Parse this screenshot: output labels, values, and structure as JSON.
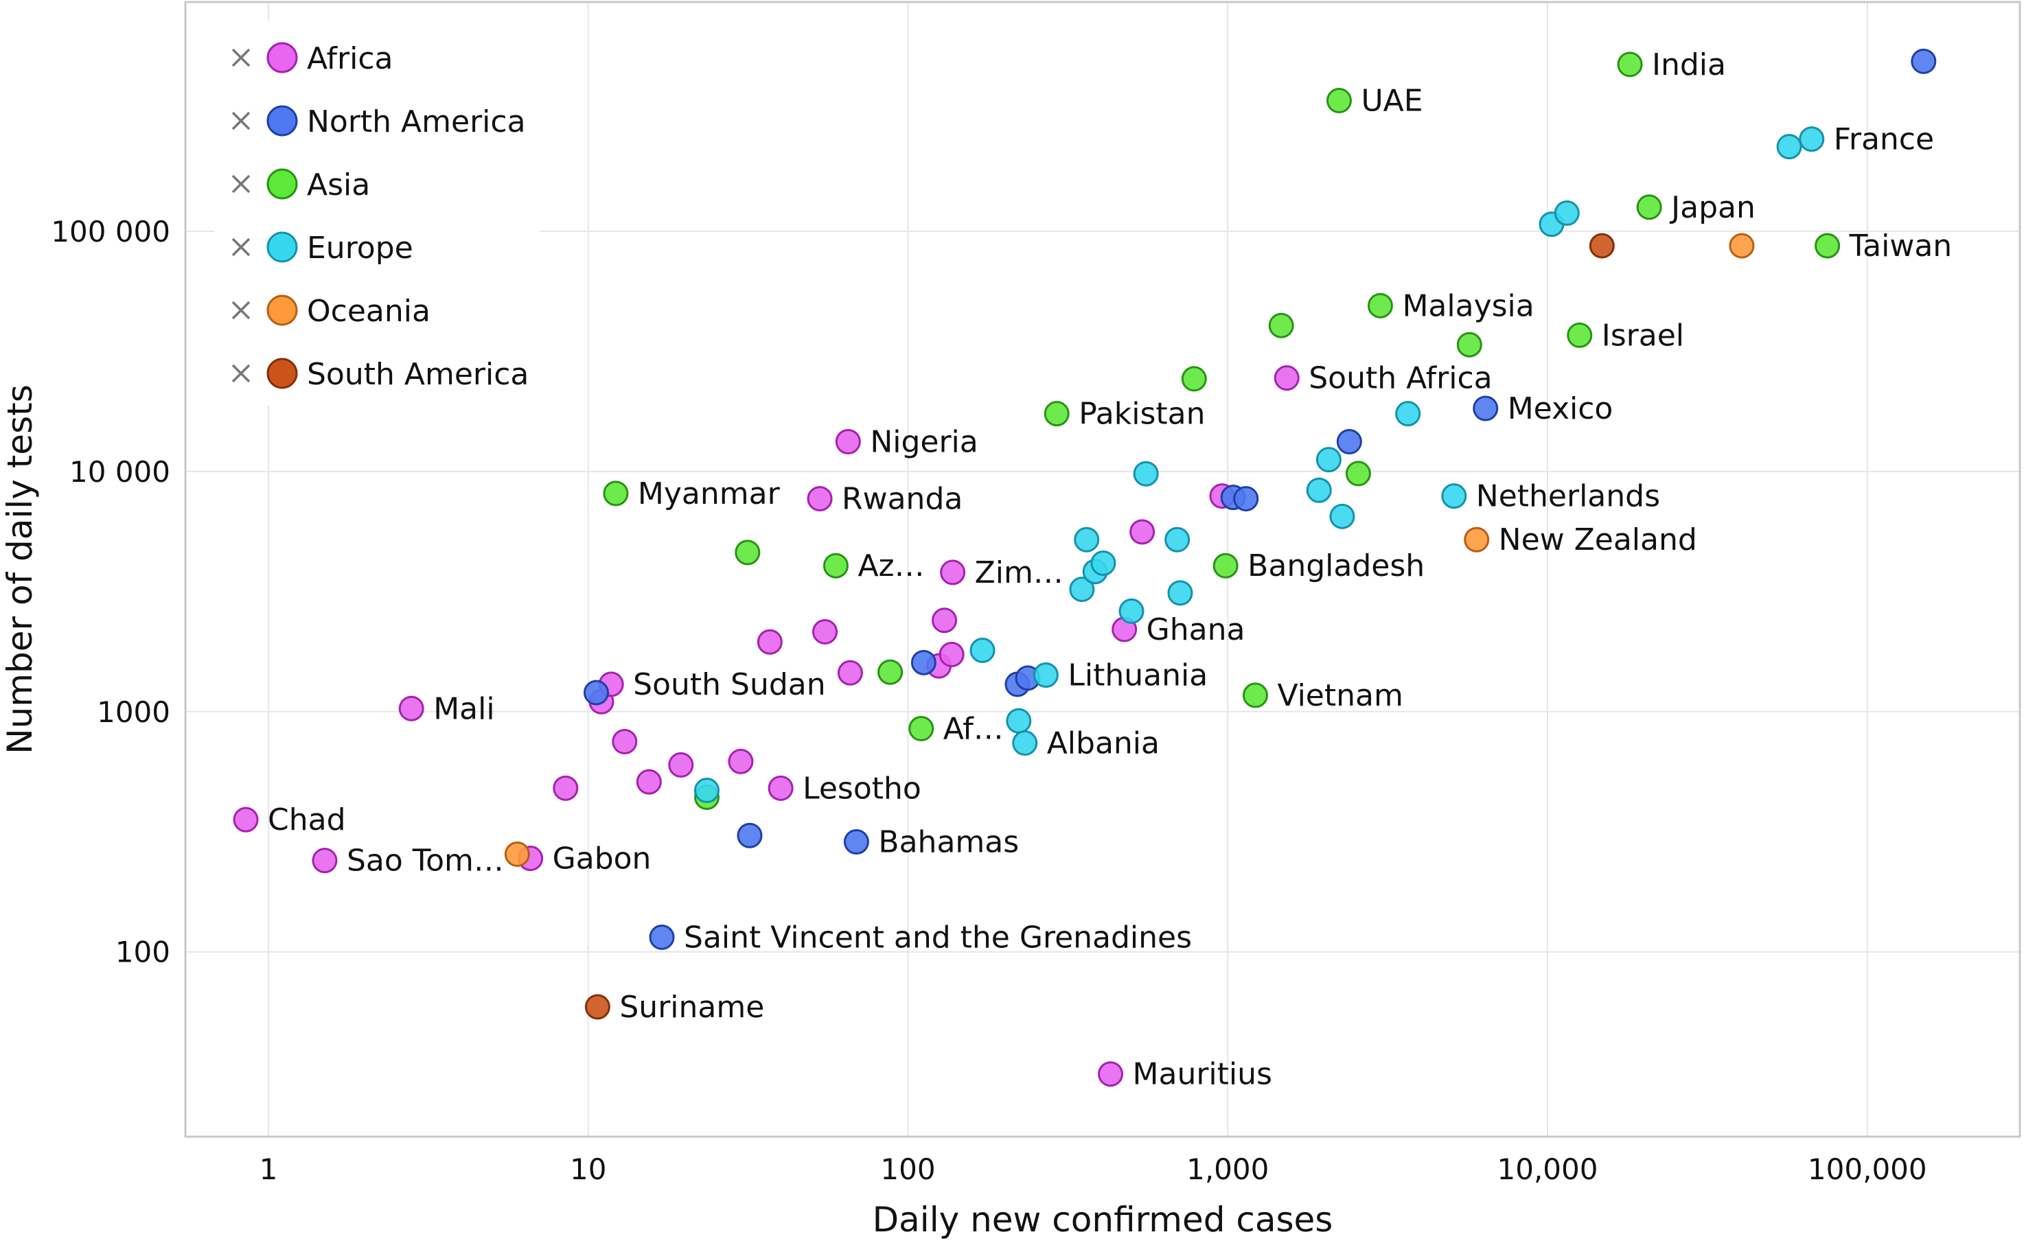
{
  "chart_data": {
    "type": "scatter",
    "title": "",
    "xlabel": "Daily new confirmed cases",
    "ylabel": "Number of daily tests",
    "x_scale": "log",
    "y_scale": "log",
    "xlim": [
      0.55,
      300000
    ],
    "ylim": [
      17,
      900000
    ],
    "grid": true,
    "legend_position": "top-left",
    "x_ticks": [
      {
        "value": 1,
        "label": "1"
      },
      {
        "value": 10,
        "label": "10"
      },
      {
        "value": 100,
        "label": "100"
      },
      {
        "value": 1000,
        "label": "1,000"
      },
      {
        "value": 10000,
        "label": "10,000"
      },
      {
        "value": 100000,
        "label": "100,000"
      }
    ],
    "y_ticks": [
      {
        "value": 100,
        "label": "100"
      },
      {
        "value": 1000,
        "label": "1000"
      },
      {
        "value": 10000,
        "label": "10 000"
      },
      {
        "value": 100000,
        "label": "100 000"
      }
    ],
    "series": [
      {
        "name": "Africa",
        "color": "#e866f0",
        "stroke": "#a521b0",
        "points": [
          {
            "x": 0.85,
            "y": 355,
            "label": "Chad"
          },
          {
            "x": 1.5,
            "y": 240,
            "label": "Sao Tom…"
          },
          {
            "x": 2.8,
            "y": 1030,
            "label": "Mali"
          },
          {
            "x": 6.6,
            "y": 245,
            "label": "Gabon"
          },
          {
            "x": 8.5,
            "y": 480
          },
          {
            "x": 11,
            "y": 1100
          },
          {
            "x": 11.8,
            "y": 1300,
            "label": "South Sudan"
          },
          {
            "x": 13,
            "y": 750
          },
          {
            "x": 15.5,
            "y": 510
          },
          {
            "x": 19.5,
            "y": 600
          },
          {
            "x": 30,
            "y": 620
          },
          {
            "x": 37,
            "y": 1950
          },
          {
            "x": 40,
            "y": 480,
            "label": "Lesotho"
          },
          {
            "x": 53,
            "y": 7700,
            "label": "Rwanda"
          },
          {
            "x": 55,
            "y": 2150
          },
          {
            "x": 65,
            "y": 13300,
            "label": "Nigeria"
          },
          {
            "x": 66,
            "y": 1450
          },
          {
            "x": 125,
            "y": 1550
          },
          {
            "x": 130,
            "y": 2400
          },
          {
            "x": 137,
            "y": 1730
          },
          {
            "x": 138,
            "y": 3800,
            "label": "Zim…"
          },
          {
            "x": 430,
            "y": 31,
            "label": "Mauritius"
          },
          {
            "x": 475,
            "y": 2200,
            "label": "Ghana"
          },
          {
            "x": 540,
            "y": 5600
          },
          {
            "x": 960,
            "y": 7900
          },
          {
            "x": 1530,
            "y": 24500,
            "label": "South Africa"
          }
        ]
      },
      {
        "name": "North America",
        "color": "#4f79f0",
        "stroke": "#1f3fa6",
        "points": [
          {
            "x": 10.6,
            "y": 1200
          },
          {
            "x": 17,
            "y": 115,
            "label": "Saint Vincent and the Grenadines"
          },
          {
            "x": 32,
            "y": 305
          },
          {
            "x": 69,
            "y": 287,
            "label": "Bahamas"
          },
          {
            "x": 112,
            "y": 1600
          },
          {
            "x": 220,
            "y": 1300
          },
          {
            "x": 237,
            "y": 1380
          },
          {
            "x": 1040,
            "y": 7800
          },
          {
            "x": 1140,
            "y": 7700
          },
          {
            "x": 2400,
            "y": 13300
          },
          {
            "x": 6400,
            "y": 18300,
            "label": "Mexico"
          },
          {
            "x": 150000,
            "y": 510000
          }
        ]
      },
      {
        "name": "Asia",
        "color": "#5ee83a",
        "stroke": "#279413",
        "points": [
          {
            "x": 12.2,
            "y": 8100,
            "label": "Myanmar"
          },
          {
            "x": 23.5,
            "y": 440
          },
          {
            "x": 31.5,
            "y": 4600
          },
          {
            "x": 59.5,
            "y": 4050,
            "label": "Az…"
          },
          {
            "x": 88,
            "y": 1460
          },
          {
            "x": 110,
            "y": 850,
            "label": "Af…"
          },
          {
            "x": 292,
            "y": 17400,
            "label": "Pakistan"
          },
          {
            "x": 785,
            "y": 24300
          },
          {
            "x": 985,
            "y": 4050,
            "label": "Bangladesh"
          },
          {
            "x": 1220,
            "y": 1170,
            "label": "Vietnam"
          },
          {
            "x": 1470,
            "y": 40500
          },
          {
            "x": 2230,
            "y": 350000,
            "label": "UAE"
          },
          {
            "x": 2560,
            "y": 9800
          },
          {
            "x": 3000,
            "y": 49000,
            "label": "Malaysia"
          },
          {
            "x": 5700,
            "y": 33700
          },
          {
            "x": 12600,
            "y": 36900,
            "label": "Israel"
          },
          {
            "x": 18100,
            "y": 495000,
            "label": "India"
          },
          {
            "x": 20800,
            "y": 126000,
            "label": "Japan"
          },
          {
            "x": 75000,
            "y": 87000,
            "label": "Taiwan"
          }
        ]
      },
      {
        "name": "Europe",
        "color": "#36d7ee",
        "stroke": "#1591ab",
        "points": [
          {
            "x": 23.5,
            "y": 470
          },
          {
            "x": 171,
            "y": 1800
          },
          {
            "x": 222,
            "y": 915
          },
          {
            "x": 232,
            "y": 740,
            "label": "Albania"
          },
          {
            "x": 270,
            "y": 1420,
            "label": "Lithuania"
          },
          {
            "x": 350,
            "y": 3230
          },
          {
            "x": 362,
            "y": 5200
          },
          {
            "x": 385,
            "y": 3830
          },
          {
            "x": 408,
            "y": 4150
          },
          {
            "x": 500,
            "y": 2620
          },
          {
            "x": 555,
            "y": 9780
          },
          {
            "x": 695,
            "y": 5200
          },
          {
            "x": 710,
            "y": 3120
          },
          {
            "x": 1930,
            "y": 8350
          },
          {
            "x": 2070,
            "y": 11200
          },
          {
            "x": 2280,
            "y": 6500
          },
          {
            "x": 3660,
            "y": 17400
          },
          {
            "x": 5100,
            "y": 7900,
            "label": "Netherlands"
          },
          {
            "x": 10300,
            "y": 107000
          },
          {
            "x": 11500,
            "y": 119000
          },
          {
            "x": 57000,
            "y": 225000
          },
          {
            "x": 67000,
            "y": 242000,
            "label": "France"
          }
        ]
      },
      {
        "name": "Oceania",
        "color": "#ff9a3c",
        "stroke": "#b85e10",
        "points": [
          {
            "x": 6,
            "y": 255
          },
          {
            "x": 6000,
            "y": 5200,
            "label": "New Zealand"
          },
          {
            "x": 40500,
            "y": 87000
          }
        ]
      },
      {
        "name": "South America",
        "color": "#cc5418",
        "stroke": "#82300a",
        "points": [
          {
            "x": 10.7,
            "y": 59,
            "label": "Suriname"
          },
          {
            "x": 14800,
            "y": 87000
          }
        ]
      }
    ]
  }
}
